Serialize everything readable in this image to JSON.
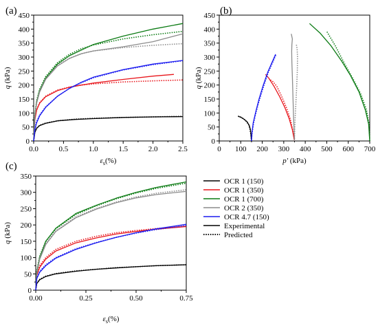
{
  "legend": [
    {
      "label": "OCR 1 (150)",
      "color": "#000000",
      "style": "solid"
    },
    {
      "label": "OCR 1 (350)",
      "color": "#e8141a",
      "style": "solid"
    },
    {
      "label": "OCR 1 (700)",
      "color": "#0a7a12",
      "style": "solid"
    },
    {
      "label": "OCR 2 (350)",
      "color": "#8c8c8c",
      "style": "solid"
    },
    {
      "label": "OCR 4.7 (150)",
      "color": "#1a1aef",
      "style": "solid"
    },
    {
      "label": "Experimental",
      "color": "#000000",
      "style": "solid"
    },
    {
      "label": "Predicted",
      "color": "#000000",
      "style": "dotted"
    }
  ],
  "chart_data": [
    {
      "panel": "(a)",
      "type": "line",
      "xlabel_main": "ε",
      "xlabel_sub": "s",
      "xlabel_rest": "(%)",
      "ylabel_main": "q",
      "ylabel_rest": " (kPa)",
      "xlim": [
        0,
        2.5
      ],
      "ylim": [
        0,
        450
      ],
      "xticks": [
        "0.0",
        "0.5",
        "1.0",
        "1.5",
        "2.0",
        "2.5"
      ],
      "yticks": [
        "0",
        "50",
        "100",
        "150",
        "200",
        "250",
        "300",
        "350",
        "400",
        "450"
      ],
      "series": [
        {
          "color": "#000000",
          "style": "solid",
          "x": [
            0,
            0.02,
            0.05,
            0.1,
            0.2,
            0.4,
            0.7,
            1.0,
            1.5,
            2.0,
            2.5
          ],
          "y": [
            0,
            30,
            45,
            55,
            63,
            72,
            77,
            80,
            84,
            86,
            87
          ]
        },
        {
          "color": "#000000",
          "style": "dotted",
          "x": [
            0,
            0.02,
            0.05,
            0.1,
            0.2,
            0.4,
            0.7,
            1.0,
            1.5,
            2.0,
            2.5
          ],
          "y": [
            0,
            32,
            46,
            56,
            64,
            72,
            78,
            81,
            84,
            86,
            88
          ]
        },
        {
          "color": "#e8141a",
          "style": "solid",
          "x": [
            0,
            0.02,
            0.05,
            0.1,
            0.2,
            0.4,
            0.6,
            0.8,
            1.0,
            1.5,
            2.0,
            2.35
          ],
          "y": [
            0,
            75,
            110,
            135,
            158,
            180,
            192,
            200,
            207,
            220,
            232,
            238
          ]
        },
        {
          "color": "#e8141a",
          "style": "dotted",
          "x": [
            0,
            0.02,
            0.05,
            0.1,
            0.2,
            0.4,
            0.6,
            0.8,
            1.0,
            1.5,
            2.0,
            2.5
          ],
          "y": [
            0,
            80,
            112,
            137,
            160,
            182,
            193,
            200,
            204,
            211,
            215,
            218
          ]
        },
        {
          "color": "#0a7a12",
          "style": "solid",
          "x": [
            0,
            0.02,
            0.05,
            0.1,
            0.2,
            0.4,
            0.6,
            0.8,
            1.0,
            1.5,
            2.0,
            2.5
          ],
          "y": [
            0,
            90,
            140,
            180,
            225,
            275,
            305,
            325,
            345,
            375,
            400,
            420
          ]
        },
        {
          "color": "#0a7a12",
          "style": "dotted",
          "x": [
            0,
            0.02,
            0.05,
            0.1,
            0.2,
            0.4,
            0.6,
            0.8,
            1.0,
            1.5,
            2.0,
            2.5
          ],
          "y": [
            0,
            95,
            145,
            185,
            230,
            280,
            310,
            330,
            343,
            365,
            380,
            392
          ]
        },
        {
          "color": "#8c8c8c",
          "style": "solid",
          "x": [
            0,
            0.02,
            0.05,
            0.1,
            0.2,
            0.4,
            0.6,
            0.8,
            1.0,
            1.5,
            2.0,
            2.5
          ],
          "y": [
            0,
            85,
            135,
            175,
            220,
            268,
            295,
            312,
            322,
            337,
            355,
            383
          ]
        },
        {
          "color": "#8c8c8c",
          "style": "dotted",
          "x": [
            0,
            0.02,
            0.05,
            0.1,
            0.2,
            0.4,
            0.6,
            0.8,
            1.0,
            1.5,
            2.0,
            2.5
          ],
          "y": [
            0,
            90,
            140,
            178,
            222,
            270,
            296,
            312,
            322,
            334,
            342,
            348
          ]
        },
        {
          "color": "#1a1aef",
          "style": "solid",
          "x": [
            0,
            0.02,
            0.05,
            0.1,
            0.2,
            0.4,
            0.6,
            0.8,
            1.0,
            1.5,
            2.0,
            2.5
          ],
          "y": [
            0,
            40,
            65,
            90,
            120,
            160,
            188,
            210,
            228,
            255,
            275,
            288
          ]
        },
        {
          "color": "#1a1aef",
          "style": "dotted",
          "x": [
            0,
            0.02,
            0.05,
            0.1,
            0.2,
            0.4,
            0.6,
            0.8,
            1.0,
            1.5,
            2.0,
            2.5
          ],
          "y": [
            0,
            45,
            70,
            93,
            122,
            160,
            188,
            208,
            226,
            254,
            273,
            287
          ]
        }
      ]
    },
    {
      "panel": "(b)",
      "type": "line",
      "xlabel_main": "p'",
      "xlabel_rest": " (kPa)",
      "ylabel_main": "q",
      "ylabel_rest": " (kPa)",
      "xlim": [
        0,
        700
      ],
      "ylim": [
        0,
        450
      ],
      "xticks": [
        "0",
        "100",
        "200",
        "300",
        "400",
        "500",
        "600",
        "700"
      ],
      "yticks": [
        "0",
        "50",
        "100",
        "150",
        "200",
        "250",
        "300",
        "350",
        "400",
        "450"
      ],
      "series": [
        {
          "color": "#000000",
          "style": "solid",
          "x": [
            150,
            148,
            145,
            140,
            130,
            115,
            100,
            88
          ],
          "y": [
            0,
            20,
            40,
            55,
            68,
            78,
            85,
            88
          ]
        },
        {
          "color": "#000000",
          "style": "dotted",
          "x": [
            150,
            147,
            143,
            137,
            126,
            112,
            98,
            86
          ],
          "y": [
            0,
            22,
            42,
            57,
            70,
            80,
            86,
            89
          ]
        },
        {
          "color": "#e8141a",
          "style": "solid",
          "x": [
            350,
            340,
            325,
            305,
            280,
            255,
            230,
            215
          ],
          "y": [
            0,
            40,
            80,
            120,
            160,
            195,
            225,
            238
          ]
        },
        {
          "color": "#e8141a",
          "style": "dotted",
          "x": [
            350,
            342,
            330,
            312,
            290,
            268,
            250,
            238
          ],
          "y": [
            0,
            40,
            80,
            120,
            160,
            195,
            212,
            218
          ]
        },
        {
          "color": "#0a7a12",
          "style": "solid",
          "x": [
            700,
            695,
            680,
            650,
            610,
            570,
            520,
            470,
            420
          ],
          "y": [
            0,
            60,
            110,
            175,
            235,
            285,
            340,
            385,
            420
          ]
        },
        {
          "color": "#0a7a12",
          "style": "dotted",
          "x": [
            700,
            697,
            685,
            660,
            620,
            580,
            540,
            500
          ],
          "y": [
            0,
            60,
            110,
            165,
            225,
            280,
            340,
            392
          ]
        },
        {
          "color": "#8c8c8c",
          "style": "solid",
          "x": [
            350,
            348,
            346,
            344,
            342,
            340,
            338,
            337,
            338,
            340,
            335
          ],
          "y": [
            0,
            40,
            80,
            130,
            180,
            230,
            280,
            320,
            345,
            365,
            383
          ]
        },
        {
          "color": "#8c8c8c",
          "style": "dotted",
          "x": [
            350,
            351,
            353,
            356,
            360,
            363,
            364,
            362,
            358
          ],
          "y": [
            0,
            40,
            80,
            130,
            190,
            250,
            300,
            330,
            348
          ]
        },
        {
          "color": "#1a1aef",
          "style": "solid",
          "x": [
            150,
            152,
            158,
            170,
            185,
            205,
            225,
            245,
            262
          ],
          "y": [
            0,
            30,
            65,
            105,
            150,
            200,
            245,
            280,
            310
          ]
        },
        {
          "color": "#1a1aef",
          "style": "dotted",
          "x": [
            150,
            153,
            160,
            172,
            188,
            208,
            228,
            248,
            265
          ],
          "y": [
            0,
            30,
            65,
            105,
            150,
            200,
            245,
            280,
            310
          ]
        }
      ]
    },
    {
      "panel": "(c)",
      "type": "line",
      "xlabel_main": "ε",
      "xlabel_sub": "s",
      "xlabel_rest": "(%)",
      "ylabel_main": "q",
      "ylabel_rest": " (kPa)",
      "xlim": [
        0,
        0.75
      ],
      "ylim": [
        0,
        350
      ],
      "xticks": [
        "0.00",
        "0.25",
        "0.50",
        "0.75"
      ],
      "yticks": [
        "0",
        "50",
        "100",
        "150",
        "200",
        "250",
        "300",
        "350"
      ],
      "series": [
        {
          "color": "#000000",
          "style": "solid",
          "x": [
            0,
            0.005,
            0.02,
            0.05,
            0.1,
            0.2,
            0.3,
            0.4,
            0.5,
            0.6,
            0.75
          ],
          "y": [
            0,
            20,
            32,
            42,
            50,
            58,
            64,
            68,
            72,
            75,
            78
          ]
        },
        {
          "color": "#000000",
          "style": "dotted",
          "x": [
            0,
            0.005,
            0.02,
            0.05,
            0.1,
            0.2,
            0.3,
            0.4,
            0.5,
            0.6,
            0.75
          ],
          "y": [
            0,
            22,
            33,
            43,
            51,
            59,
            64,
            69,
            72,
            75,
            78
          ]
        },
        {
          "color": "#e8141a",
          "style": "solid",
          "x": [
            0,
            0.005,
            0.02,
            0.05,
            0.1,
            0.2,
            0.3,
            0.4,
            0.5,
            0.6,
            0.75
          ],
          "y": [
            0,
            45,
            70,
            95,
            120,
            145,
            160,
            172,
            180,
            187,
            195
          ]
        },
        {
          "color": "#e8141a",
          "style": "dotted",
          "x": [
            0,
            0.005,
            0.02,
            0.05,
            0.1,
            0.2,
            0.3,
            0.4,
            0.5,
            0.6,
            0.75
          ],
          "y": [
            0,
            50,
            75,
            100,
            125,
            150,
            165,
            176,
            183,
            189,
            196
          ]
        },
        {
          "color": "#0a7a12",
          "style": "solid",
          "x": [
            0,
            0.005,
            0.02,
            0.05,
            0.1,
            0.2,
            0.3,
            0.4,
            0.5,
            0.6,
            0.75
          ],
          "y": [
            0,
            55,
            100,
            150,
            190,
            235,
            260,
            282,
            300,
            315,
            332
          ]
        },
        {
          "color": "#0a7a12",
          "style": "dotted",
          "x": [
            0,
            0.005,
            0.02,
            0.05,
            0.1,
            0.2,
            0.3,
            0.4,
            0.5,
            0.6,
            0.75
          ],
          "y": [
            0,
            60,
            105,
            150,
            188,
            232,
            258,
            280,
            298,
            312,
            328
          ]
        },
        {
          "color": "#8c8c8c",
          "style": "solid",
          "x": [
            0,
            0.005,
            0.02,
            0.05,
            0.1,
            0.2,
            0.3,
            0.4,
            0.5,
            0.6,
            0.75
          ],
          "y": [
            0,
            50,
            95,
            140,
            180,
            222,
            248,
            268,
            283,
            293,
            303
          ]
        },
        {
          "color": "#8c8c8c",
          "style": "dotted",
          "x": [
            0,
            0.005,
            0.02,
            0.05,
            0.1,
            0.2,
            0.3,
            0.4,
            0.5,
            0.6,
            0.75
          ],
          "y": [
            0,
            55,
            100,
            143,
            182,
            225,
            250,
            270,
            286,
            297,
            308
          ]
        },
        {
          "color": "#1a1aef",
          "style": "solid",
          "x": [
            0,
            0.005,
            0.02,
            0.05,
            0.1,
            0.2,
            0.3,
            0.4,
            0.5,
            0.6,
            0.75
          ],
          "y": [
            0,
            35,
            55,
            75,
            98,
            125,
            145,
            162,
            176,
            188,
            202
          ]
        },
        {
          "color": "#1a1aef",
          "style": "dotted",
          "x": [
            0,
            0.005,
            0.02,
            0.05,
            0.1,
            0.2,
            0.3,
            0.4,
            0.5,
            0.6,
            0.75
          ],
          "y": [
            0,
            38,
            58,
            78,
            100,
            127,
            146,
            162,
            175,
            186,
            198
          ]
        }
      ]
    }
  ]
}
